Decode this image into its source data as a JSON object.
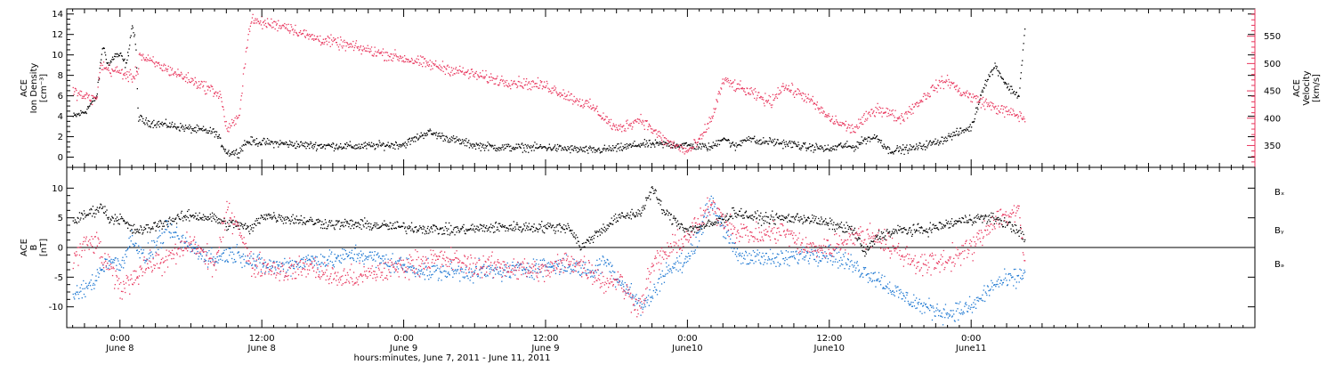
{
  "colors": {
    "black": "#000000",
    "red": "#e8365d",
    "blue": "#1e78d2"
  },
  "chart_data": [
    {
      "type": "scatter",
      "panel": "top",
      "ylabel_lines": [
        "ACE",
        "Ion Density",
        "[cm⁻³]"
      ],
      "y2label_lines": [
        "ACE",
        "Velocity",
        "[km/s]"
      ],
      "ylim": [
        -1,
        14.5
      ],
      "yticks": [
        "0",
        "2",
        "4",
        "6",
        "8",
        "10",
        "12",
        "14"
      ],
      "ytick_values": [
        0,
        2,
        4,
        6,
        8,
        10,
        12,
        14
      ],
      "y2lim": [
        310,
        600
      ],
      "y2ticks": [
        "350",
        "400",
        "450",
        "500",
        "550"
      ],
      "y2tick_values": [
        350,
        400,
        450,
        500,
        550
      ],
      "series": [
        {
          "color": "black",
          "axis": "left",
          "x": [
            -4,
            -3,
            -2,
            -1.5,
            -1,
            -0.5,
            0,
            0.5,
            1,
            1.3,
            1.5,
            2,
            4,
            6,
            8,
            9,
            10,
            10.5,
            11,
            12,
            16,
            20,
            24,
            26,
            28,
            30,
            32,
            36,
            40,
            42,
            44,
            46,
            48,
            50,
            51,
            52,
            53,
            54,
            55,
            56,
            57,
            58,
            59,
            60,
            61,
            62,
            63,
            64,
            65,
            66,
            67,
            68,
            69,
            70,
            71,
            72,
            73,
            74,
            75,
            76,
            76.5
          ],
          "y": [
            4,
            4.5,
            6,
            11,
            9,
            10,
            10,
            9,
            13,
            11,
            4,
            3.5,
            3.2,
            2.8,
            2.5,
            0.5,
            0.5,
            1.4,
            1.6,
            1.5,
            1.2,
            1.1,
            1.3,
            2.5,
            1.8,
            1.2,
            1.0,
            1.0,
            0.7,
            0.9,
            1.3,
            1.3,
            1.2,
            1.0,
            2.0,
            1.0,
            2.0,
            1.5,
            1.6,
            1.4,
            1.3,
            1.0,
            1.0,
            0.8,
            1.2,
            1.0,
            1.8,
            2.0,
            0.7,
            0.8,
            0.9,
            1.2,
            1.5,
            2.0,
            2.5,
            3.0,
            7.0,
            9.0,
            7.0,
            6.0,
            12.5
          ],
          "noise": 0.3
        },
        {
          "color": "red",
          "axis": "right",
          "x": [
            -4,
            -3,
            -2,
            -1.7,
            -1.5,
            -1,
            0,
            0.5,
            1,
            1.5,
            1.6,
            2,
            4,
            6,
            8,
            8.5,
            9,
            10,
            10.5,
            11,
            12,
            14,
            16,
            18,
            20,
            24,
            28,
            32,
            36,
            40,
            41,
            42,
            44,
            46,
            48,
            49,
            50,
            51,
            52,
            53,
            54,
            55,
            56,
            57,
            58,
            59,
            60,
            61,
            62,
            63,
            64,
            65,
            66,
            67,
            68,
            69,
            70,
            71,
            72,
            74,
            76,
            76.5
          ],
          "y": [
            450,
            440,
            435,
            500,
            495,
            490,
            485,
            480,
            475,
            490,
            520,
            510,
            490,
            470,
            450,
            440,
            380,
            400,
            500,
            580,
            575,
            570,
            550,
            540,
            530,
            510,
            490,
            470,
            460,
            420,
            400,
            380,
            400,
            360,
            340,
            360,
            400,
            470,
            460,
            450,
            440,
            430,
            460,
            450,
            440,
            420,
            400,
            390,
            380,
            400,
            420,
            410,
            400,
            420,
            440,
            460,
            470,
            450,
            440,
            420,
            405,
            400
          ],
          "noise": 8
        }
      ]
    },
    {
      "type": "scatter",
      "panel": "bottom",
      "ylabel_lines": [
        "ACE",
        "B",
        "[nT]"
      ],
      "ylim": [
        -13.5,
        13.5
      ],
      "yticks": [
        "-10",
        "-5",
        "0",
        "5",
        "10"
      ],
      "ytick_values": [
        -10,
        -5,
        0,
        5,
        10
      ],
      "zero_line": true,
      "legend_placement": "right",
      "series": [
        {
          "name": "Bₓ",
          "color": "black",
          "x": [
            -4,
            -2,
            -1.5,
            -1,
            0,
            1,
            2,
            4,
            6,
            8,
            9,
            10,
            11,
            12,
            14,
            16,
            18,
            20,
            24,
            28,
            32,
            36,
            38,
            39,
            40,
            42,
            44,
            45,
            46,
            48,
            50,
            52,
            54,
            56,
            58,
            60,
            62,
            63,
            64,
            66,
            68,
            70,
            72,
            74,
            76,
            76.5
          ],
          "y": [
            4.5,
            6.5,
            7,
            5,
            5,
            3,
            3,
            4.5,
            5.5,
            5,
            4,
            4,
            3,
            5.5,
            5,
            4.5,
            4,
            4,
            3.5,
            3,
            3.5,
            3.5,
            3.5,
            0,
            2,
            5,
            6,
            10,
            6,
            3,
            4,
            6,
            5,
            5,
            5,
            4,
            3,
            -1,
            2,
            3,
            3,
            4,
            5,
            5,
            3,
            1
          ],
          "noise": 0.7
        },
        {
          "name": "Bᵧ",
          "color": "blue",
          "x": [
            -4,
            -3,
            -2,
            -1.5,
            -1,
            0,
            1,
            2,
            4,
            6,
            8,
            9,
            10,
            11,
            12,
            14,
            16,
            18,
            20,
            22,
            24,
            26,
            28,
            30,
            32,
            36,
            38,
            40,
            41,
            42,
            43,
            44,
            45,
            46,
            48,
            50,
            52,
            53,
            54,
            55,
            56,
            58,
            60,
            62,
            64,
            66,
            68,
            70,
            72,
            74,
            76,
            76.5
          ],
          "y": [
            -8,
            -7,
            -5,
            -3,
            -2,
            -3,
            2,
            -2,
            3,
            0,
            -2,
            -1,
            -1,
            -2,
            -3,
            -3,
            -2,
            -2,
            -1,
            -2,
            -3,
            -4,
            -4,
            -4,
            -4,
            -3,
            -3,
            -4,
            -2,
            -5,
            -7,
            -10,
            -8,
            -4,
            -2,
            8,
            -1,
            -2,
            -1,
            -2,
            -2,
            -1,
            -1,
            -3,
            -5,
            -8,
            -10,
            -11,
            -10,
            -6,
            -5,
            -4
          ],
          "noise": 1.2
        },
        {
          "name": "Bₔ",
          "color": "red",
          "x": [
            -4,
            -3,
            -2,
            -1.5,
            -1,
            0,
            1,
            2,
            4,
            6,
            8,
            9,
            10,
            11,
            12,
            14,
            16,
            18,
            20,
            22,
            24,
            26,
            28,
            30,
            32,
            36,
            38,
            40,
            41,
            42,
            43,
            44,
            45,
            46,
            48,
            50,
            52,
            54,
            56,
            58,
            60,
            62,
            64,
            66,
            68,
            70,
            72,
            74,
            76,
            76.5
          ],
          "y": [
            -2,
            0.5,
            1,
            -2,
            -3,
            -7,
            -5,
            -3,
            -2,
            1,
            -3,
            6,
            4,
            -3,
            -3,
            -4,
            -3,
            -5,
            -5,
            -4,
            -3,
            -2,
            -2,
            -3,
            -3,
            -4,
            -2,
            -4,
            -6,
            -5,
            -8,
            -10,
            -3,
            -1,
            2,
            7,
            3,
            2,
            3,
            0,
            0,
            2,
            2,
            -1,
            -3,
            -2,
            0,
            5,
            6,
            -3
          ],
          "noise": 1.5
        }
      ]
    }
  ],
  "xaxis": {
    "xlim": [
      -4.5,
      96
    ],
    "ticks": [
      {
        "x": 0,
        "time": "0:00",
        "date": "June 8"
      },
      {
        "x": 12,
        "time": "12:00",
        "date": "June 8"
      },
      {
        "x": 24,
        "time": "0:00",
        "date": "June 9"
      },
      {
        "x": 36,
        "time": "12:00",
        "date": "June 9"
      },
      {
        "x": 48,
        "time": "0:00",
        "date": "June10"
      },
      {
        "x": 60,
        "time": "12:00",
        "date": "June10"
      },
      {
        "x": 72,
        "time": "0:00",
        "date": "June11"
      }
    ],
    "title": "hours:minutes, June  7, 2011 - June 11, 2011"
  }
}
